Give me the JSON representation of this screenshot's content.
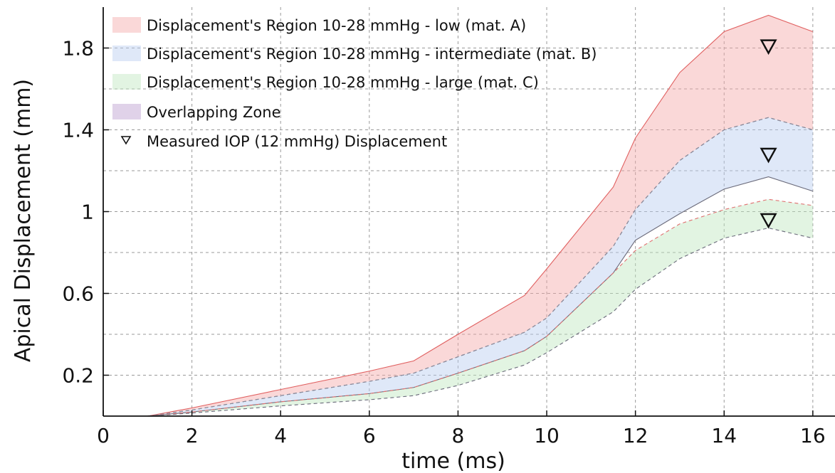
{
  "chart_data": {
    "type": "area",
    "xlabel": "time (ms)",
    "ylabel": "Apical Displacement (mm)",
    "xlim": [
      0,
      16.5
    ],
    "ylim": [
      0,
      2.0
    ],
    "x_ticks": [
      "0",
      "2",
      "4",
      "6",
      "8",
      "10",
      "12",
      "14",
      "16"
    ],
    "y_ticks": [
      "0.2",
      "0.6",
      "1",
      "1.4",
      "1.8"
    ],
    "y_tick_values": [
      0.2,
      0.6,
      1.0,
      1.4,
      1.8
    ],
    "grid": true,
    "legend_position": "top-left",
    "x": [
      1,
      2,
      4,
      6,
      7,
      8,
      9.5,
      10,
      11.5,
      12,
      13,
      14,
      15,
      16
    ],
    "series": [
      {
        "name": "Displacement's Region 10-28 mmHg - low (mat. A)",
        "color": "#f4a8a8",
        "upper": [
          0.0,
          0.04,
          0.13,
          0.22,
          0.27,
          0.4,
          0.59,
          0.72,
          1.12,
          1.36,
          1.68,
          1.88,
          1.96,
          1.88
        ],
        "lower": [
          0.0,
          0.03,
          0.1,
          0.17,
          0.21,
          0.29,
          0.41,
          0.48,
          0.83,
          1.01,
          1.25,
          1.4,
          1.46,
          1.4
        ]
      },
      {
        "name": "Displacement's Region 10-28 mmHg - intermediate (mat. B)",
        "color": "#b8cdf0",
        "upper": [
          0.0,
          0.03,
          0.1,
          0.17,
          0.21,
          0.29,
          0.41,
          0.48,
          0.83,
          1.01,
          1.25,
          1.4,
          1.46,
          1.4
        ],
        "lower": [
          0.0,
          0.02,
          0.07,
          0.11,
          0.14,
          0.21,
          0.32,
          0.39,
          0.7,
          0.86,
          0.99,
          1.11,
          1.17,
          1.1
        ]
      },
      {
        "name": "Displacement's Region 10-28 mmHg - large (mat. C)",
        "color": "#bfe6bf",
        "upper": [
          0.0,
          0.02,
          0.07,
          0.11,
          0.14,
          0.21,
          0.32,
          0.39,
          0.7,
          0.81,
          0.94,
          1.01,
          1.06,
          1.03
        ],
        "lower": [
          0.0,
          0.015,
          0.05,
          0.08,
          0.1,
          0.15,
          0.25,
          0.31,
          0.51,
          0.62,
          0.77,
          0.87,
          0.92,
          0.87
        ]
      }
    ],
    "overlap_name": "Overlapping Zone",
    "overlap_color": "#d3bfe0",
    "markers": {
      "name": "Measured IOP (12 mmHg) Displacement",
      "x": [
        15,
        15,
        15
      ],
      "y": [
        1.81,
        1.28,
        0.96
      ]
    }
  }
}
